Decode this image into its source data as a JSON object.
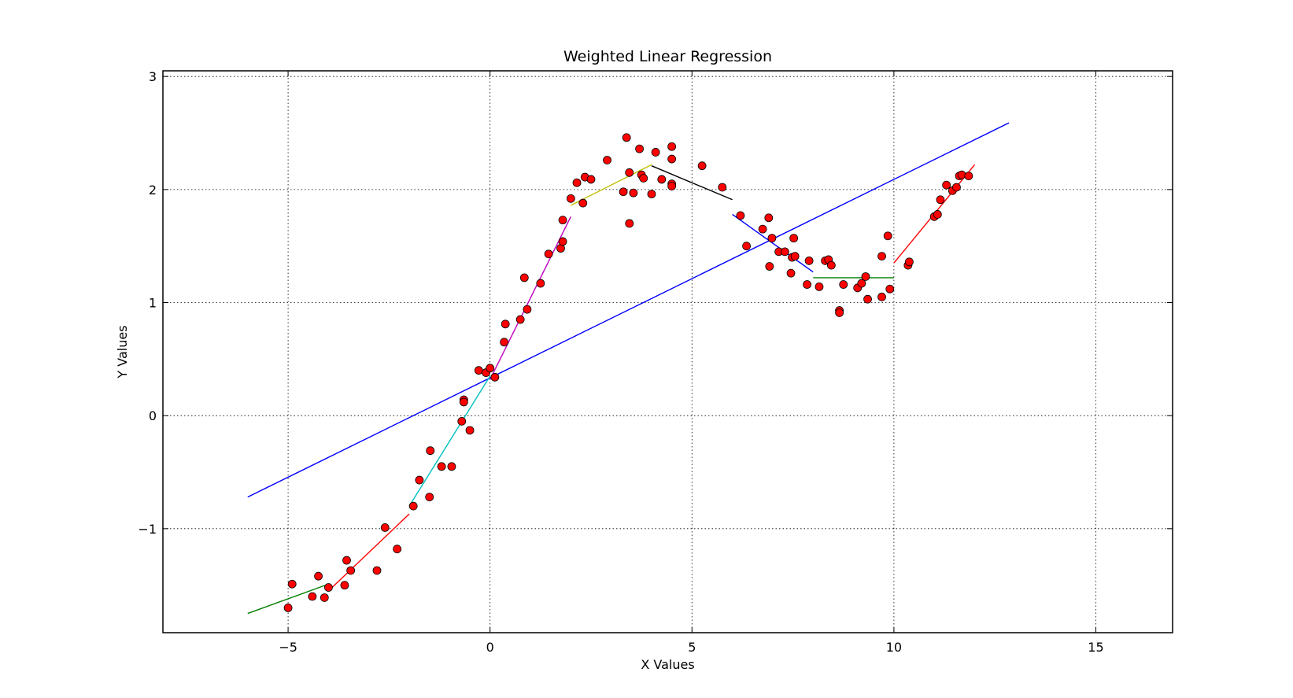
{
  "chart_data": {
    "type": "scatter",
    "title": "Weighted Linear Regression",
    "xlabel": "X Values",
    "ylabel": "Y Values",
    "xlim": [
      -8.1,
      16.9
    ],
    "ylim": [
      -1.92,
      3.05
    ],
    "xticks": [
      -5,
      0,
      5,
      10,
      15
    ],
    "xtick_labels": [
      "−5",
      "0",
      "5",
      "10",
      "15"
    ],
    "yticks": [
      -1,
      0,
      1,
      2,
      3
    ],
    "ytick_labels": [
      "−1",
      "0",
      "1",
      "2",
      "3"
    ],
    "grid": true,
    "grid_style": "dotted",
    "legend": "none",
    "marker_color": "#ff0000",
    "points": [
      [
        -5.0,
        -1.7
      ],
      [
        -4.9,
        -1.49
      ],
      [
        -4.4,
        -1.6
      ],
      [
        -4.25,
        -1.42
      ],
      [
        -4.1,
        -1.61
      ],
      [
        -4.0,
        -1.52
      ],
      [
        -3.6,
        -1.5
      ],
      [
        -3.55,
        -1.28
      ],
      [
        -3.45,
        -1.37
      ],
      [
        -2.8,
        -1.37
      ],
      [
        -2.6,
        -0.99
      ],
      [
        -2.3,
        -1.18
      ],
      [
        -1.9,
        -0.8
      ],
      [
        -1.75,
        -0.57
      ],
      [
        -1.5,
        -0.72
      ],
      [
        -1.48,
        -0.31
      ],
      [
        -1.2,
        -0.45
      ],
      [
        -0.95,
        -0.45
      ],
      [
        -0.7,
        -0.05
      ],
      [
        -0.65,
        0.14
      ],
      [
        -0.65,
        0.12
      ],
      [
        -0.5,
        -0.13
      ],
      [
        -0.28,
        0.4
      ],
      [
        -0.1,
        0.38
      ],
      [
        0.0,
        0.42
      ],
      [
        0.12,
        0.34
      ],
      [
        0.35,
        0.65
      ],
      [
        0.38,
        0.81
      ],
      [
        0.75,
        0.85
      ],
      [
        0.85,
        1.22
      ],
      [
        0.92,
        0.94
      ],
      [
        1.25,
        1.17
      ],
      [
        1.45,
        1.43
      ],
      [
        1.75,
        1.48
      ],
      [
        1.8,
        1.54
      ],
      [
        1.8,
        1.73
      ],
      [
        2.0,
        1.92
      ],
      [
        2.15,
        2.06
      ],
      [
        2.3,
        1.88
      ],
      [
        2.35,
        2.11
      ],
      [
        2.5,
        2.09
      ],
      [
        2.9,
        2.26
      ],
      [
        3.3,
        1.98
      ],
      [
        3.38,
        2.46
      ],
      [
        3.45,
        2.15
      ],
      [
        3.45,
        1.7
      ],
      [
        3.55,
        1.97
      ],
      [
        3.7,
        2.36
      ],
      [
        3.75,
        2.13
      ],
      [
        3.8,
        2.1
      ],
      [
        4.0,
        1.96
      ],
      [
        4.1,
        2.33
      ],
      [
        4.25,
        2.09
      ],
      [
        4.5,
        2.05
      ],
      [
        4.5,
        2.38
      ],
      [
        4.5,
        2.27
      ],
      [
        4.5,
        2.03
      ],
      [
        5.25,
        2.21
      ],
      [
        5.75,
        2.02
      ],
      [
        6.2,
        1.77
      ],
      [
        6.35,
        1.5
      ],
      [
        6.75,
        1.65
      ],
      [
        6.9,
        1.75
      ],
      [
        6.92,
        1.32
      ],
      [
        6.98,
        1.57
      ],
      [
        7.15,
        1.45
      ],
      [
        7.3,
        1.45
      ],
      [
        7.45,
        1.26
      ],
      [
        7.48,
        1.4
      ],
      [
        7.52,
        1.57
      ],
      [
        7.55,
        1.41
      ],
      [
        7.85,
        1.16
      ],
      [
        7.9,
        1.37
      ],
      [
        8.15,
        1.14
      ],
      [
        8.3,
        1.37
      ],
      [
        8.38,
        1.38
      ],
      [
        8.45,
        1.33
      ],
      [
        8.65,
        0.93
      ],
      [
        8.65,
        0.91
      ],
      [
        8.75,
        1.16
      ],
      [
        9.1,
        1.13
      ],
      [
        9.2,
        1.17
      ],
      [
        9.3,
        1.23
      ],
      [
        9.35,
        1.03
      ],
      [
        9.7,
        1.41
      ],
      [
        9.7,
        1.05
      ],
      [
        9.85,
        1.59
      ],
      [
        9.9,
        1.12
      ],
      [
        10.35,
        1.33
      ],
      [
        10.38,
        1.36
      ],
      [
        11.0,
        1.76
      ],
      [
        11.08,
        1.78
      ],
      [
        11.15,
        1.91
      ],
      [
        11.3,
        2.04
      ],
      [
        11.45,
        1.99
      ],
      [
        11.55,
        2.02
      ],
      [
        11.62,
        2.12
      ],
      [
        11.68,
        2.13
      ],
      [
        11.85,
        2.12
      ]
    ],
    "lines": [
      {
        "color": "#0000ff",
        "x": [
          -6.0,
          12.85
        ],
        "y": [
          -0.72,
          2.59
        ]
      },
      {
        "color": "#008000",
        "x": [
          -6.0,
          -4.0
        ],
        "y": [
          -1.75,
          -1.49
        ]
      },
      {
        "color": "#ff0000",
        "x": [
          -4.0,
          -2.0
        ],
        "y": [
          -1.55,
          -0.87
        ]
      },
      {
        "color": "#00bfbf",
        "x": [
          -2.0,
          0.0
        ],
        "y": [
          -0.8,
          0.35
        ]
      },
      {
        "color": "#bf00bf",
        "x": [
          0.0,
          2.0
        ],
        "y": [
          0.32,
          1.76
        ]
      },
      {
        "color": "#bfbf00",
        "x": [
          2.0,
          4.0
        ],
        "y": [
          1.86,
          2.22
        ]
      },
      {
        "color": "#000000",
        "x": [
          4.0,
          6.0
        ],
        "y": [
          2.21,
          1.91
        ]
      },
      {
        "color": "#0000ff",
        "x": [
          6.0,
          8.0
        ],
        "y": [
          1.78,
          1.27
        ]
      },
      {
        "color": "#008000",
        "x": [
          8.0,
          10.0
        ],
        "y": [
          1.22,
          1.22
        ]
      },
      {
        "color": "#ff0000",
        "x": [
          10.0,
          12.0
        ],
        "y": [
          1.35,
          2.22
        ]
      }
    ]
  }
}
